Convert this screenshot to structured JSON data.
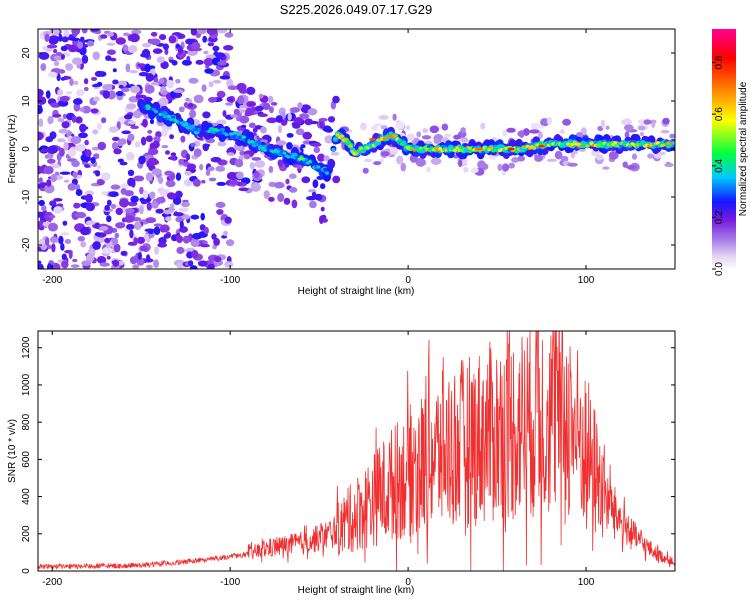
{
  "title": "S225.2026.049.07.17.G29",
  "chart_data": [
    {
      "type": "heatmap",
      "name": "spectrogram",
      "xlabel": "Height of straight line (km)",
      "ylabel": "Frequency (Hz)",
      "xlim": [
        -208,
        150
      ],
      "ylim": [
        -25,
        25
      ],
      "xticks": [
        -200,
        -100,
        0,
        100
      ],
      "yticks": [
        -20,
        -10,
        0,
        10,
        20
      ],
      "colorbar": {
        "label": "Normalized spectral amplitude",
        "range": [
          0,
          0.93
        ],
        "ticks": [
          "0.0",
          "0.2",
          "0.4",
          "0.6",
          "0.8"
        ],
        "tick_values": [
          0.0,
          0.2,
          0.4,
          0.6,
          0.8
        ],
        "colors": [
          "#ffffff",
          "#e6d6f5",
          "#a87ee8",
          "#7a1ee0",
          "#1515ff",
          "#00c8ff",
          "#00ff40",
          "#ffff00",
          "#ff8000",
          "#ff0000",
          "#ff0090"
        ]
      },
      "ridge": {
        "description": "Dominant tone frequency vs height",
        "x": [
          -150,
          -130,
          -120,
          -110,
          -100,
          -90,
          -80,
          -70,
          -60,
          -50,
          -45,
          -40,
          -35,
          -30,
          -25,
          -20,
          -15,
          -10,
          -5,
          0,
          10,
          20,
          40,
          60,
          80,
          100,
          120,
          150
        ],
        "freq": [
          9,
          6,
          4,
          4,
          3,
          2,
          0,
          -1,
          -2,
          -4,
          -5,
          3,
          2,
          -1,
          0,
          1,
          2,
          3,
          2,
          0,
          0,
          0,
          0,
          0,
          1,
          1,
          1,
          1
        ]
      }
    },
    {
      "type": "line",
      "name": "snr",
      "xlabel": "Height of straight line (km)",
      "ylabel": "SNR (10 * v/v)",
      "xlim": [
        -208,
        150
      ],
      "ylim": [
        0,
        1290
      ],
      "xticks": [
        -200,
        -100,
        0,
        100
      ],
      "yticks": [
        0,
        200,
        400,
        600,
        800,
        1000,
        1200
      ],
      "color": "#f03030",
      "envelope": {
        "x": [
          -208,
          -180,
          -150,
          -130,
          -110,
          -90,
          -80,
          -60,
          -50,
          -40,
          -30,
          -20,
          -10,
          0,
          20,
          40,
          60,
          70,
          80,
          90,
          100,
          110,
          120,
          130,
          140,
          150
        ],
        "mean": [
          25,
          25,
          30,
          45,
          65,
          90,
          120,
          150,
          175,
          220,
          300,
          380,
          460,
          530,
          650,
          720,
          780,
          820,
          850,
          830,
          650,
          420,
          260,
          160,
          90,
          45
        ]
      },
      "peak": {
        "x": 73,
        "y": 1290
      }
    }
  ]
}
